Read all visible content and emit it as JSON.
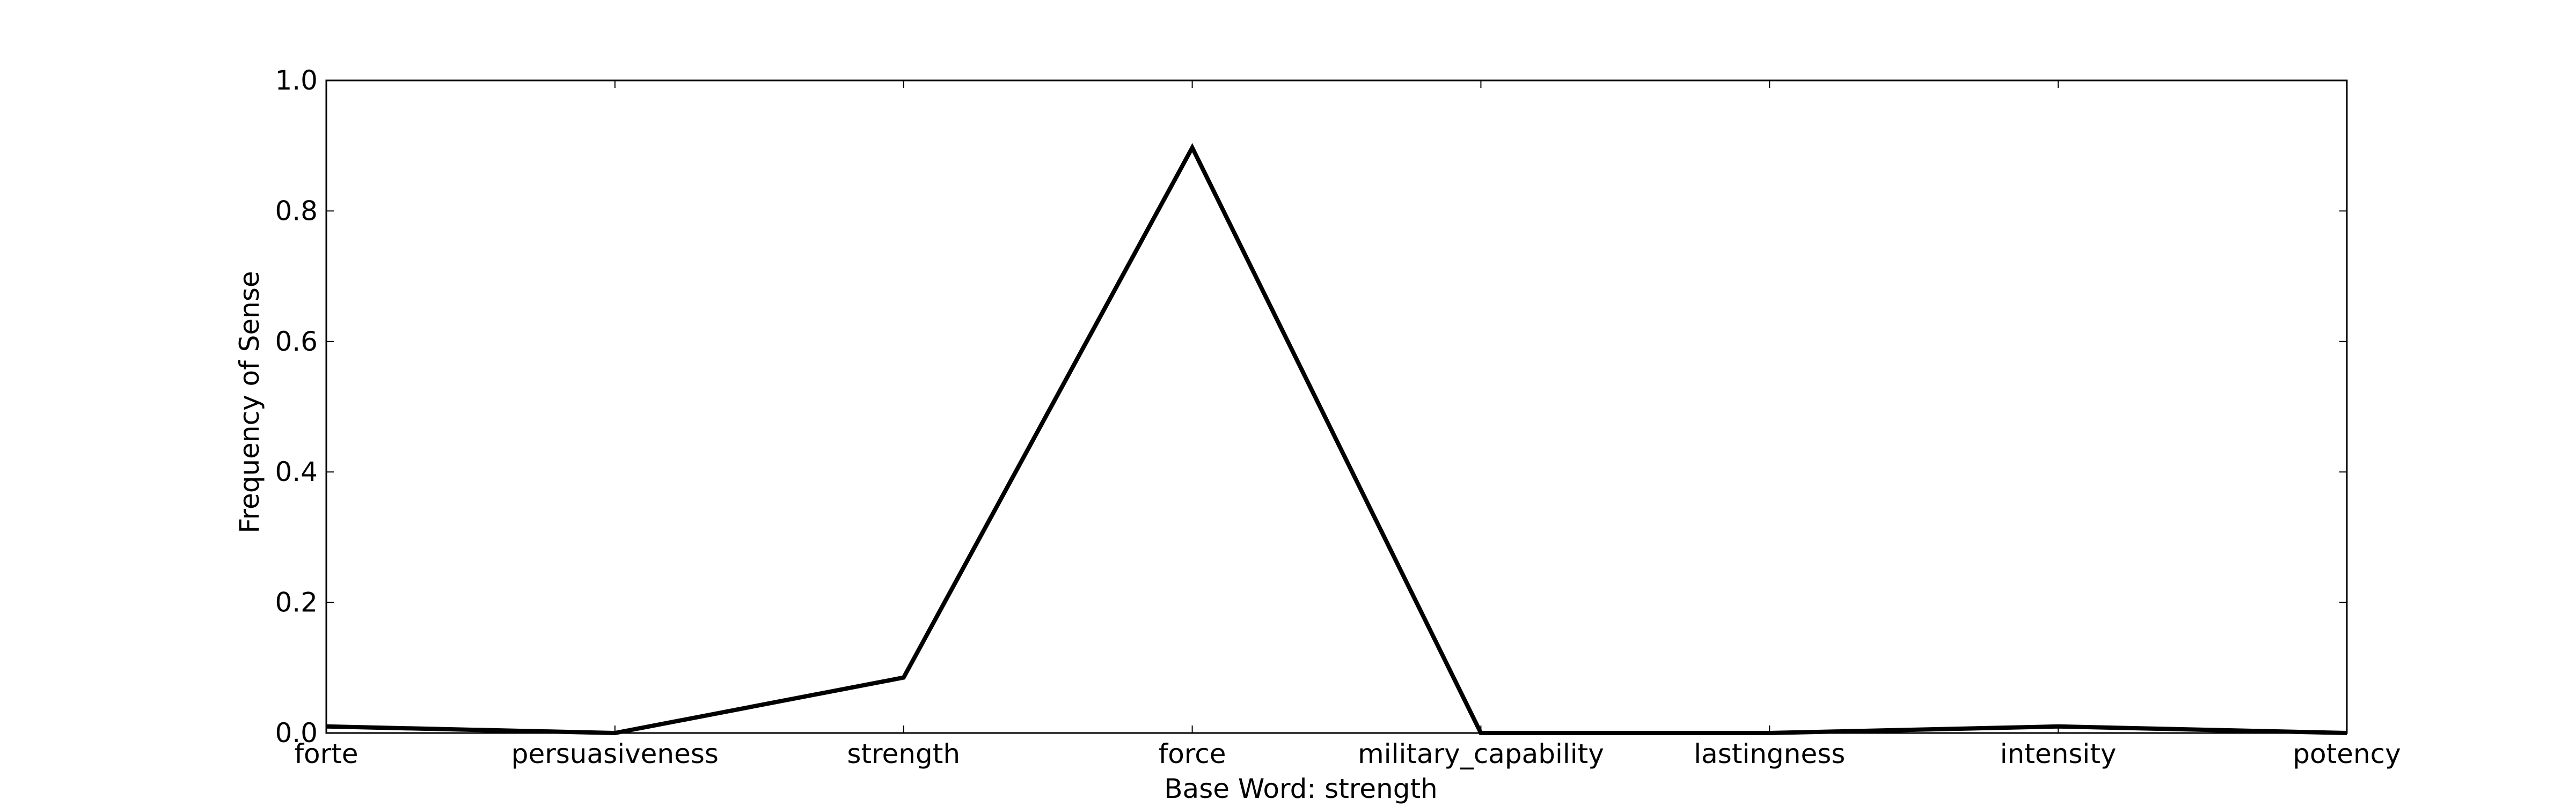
{
  "chart_data": {
    "type": "line",
    "title": "",
    "xlabel": "Base Word: strength",
    "ylabel": "Frequency of Sense",
    "categories": [
      "forte",
      "persuasiveness",
      "strength",
      "force",
      "military_capability",
      "lastingness",
      "intensity",
      "potency"
    ],
    "series": [
      {
        "values": [
          0.01,
          0.0,
          0.085,
          0.897,
          0.0,
          0.0,
          0.01,
          0.0
        ],
        "color": "#000000"
      }
    ],
    "ylim": [
      0.0,
      1.0
    ],
    "yticks": [
      "0.0",
      "0.2",
      "0.4",
      "0.6",
      "0.8",
      "1.0"
    ],
    "grid": false,
    "legend": "none"
  }
}
